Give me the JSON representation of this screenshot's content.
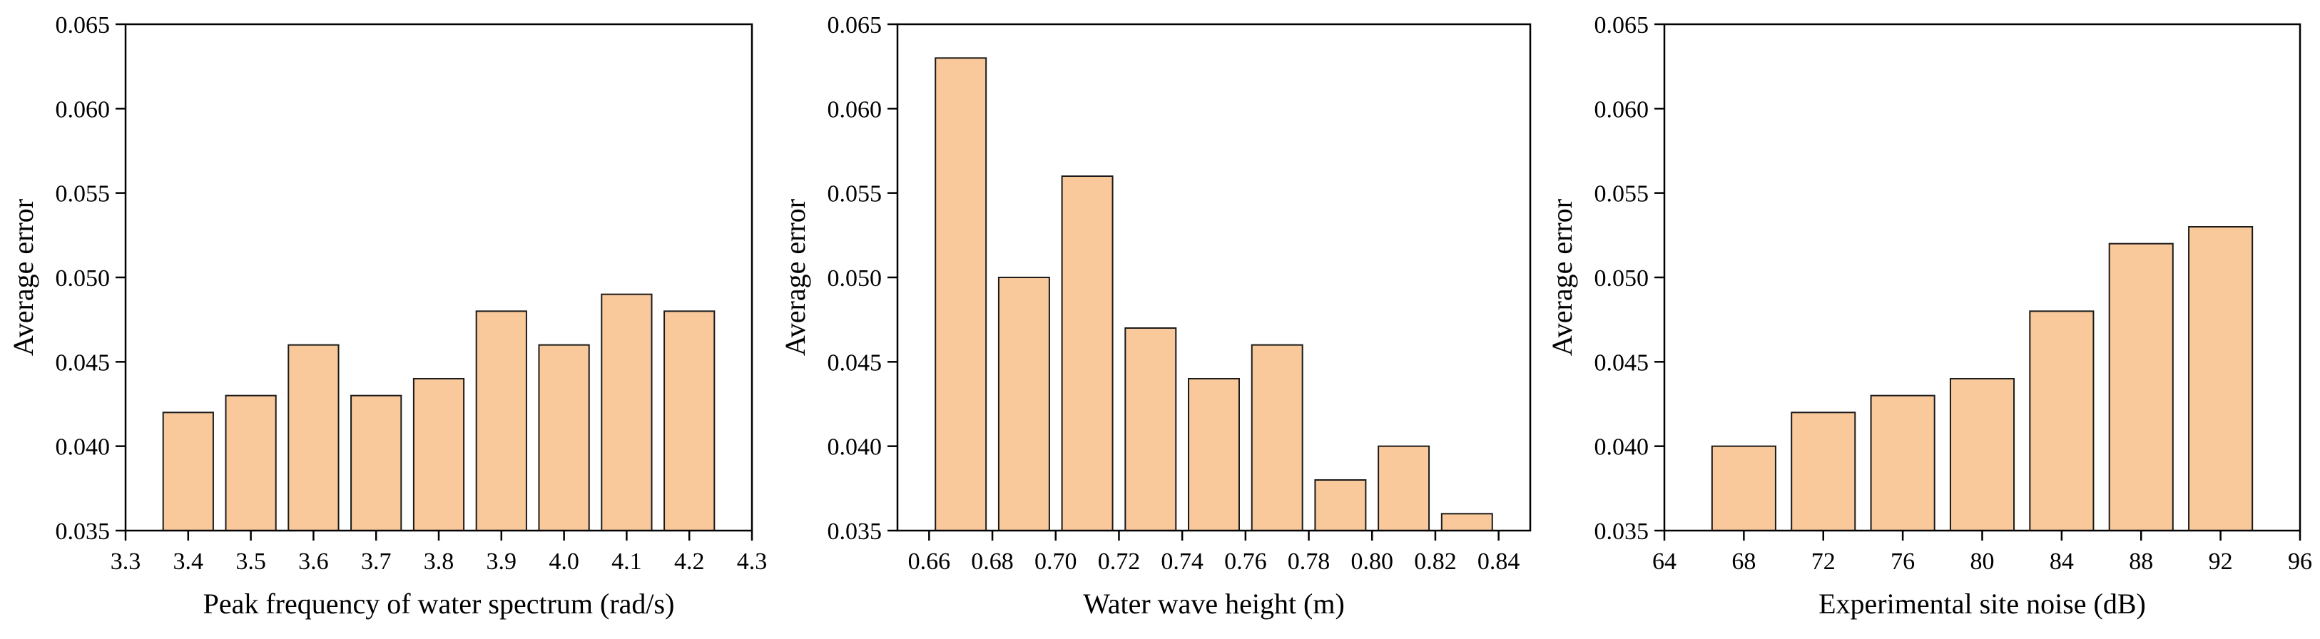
{
  "colors": {
    "bar_fill": "#f9c89b",
    "bar_stroke": "#1a1a1a",
    "axis": "#000000"
  },
  "chart_data": [
    {
      "type": "bar",
      "title": "",
      "xlabel": "Peak frequency of water spectrum (rad/s)",
      "ylabel": "Average error",
      "xlim": [
        3.3,
        4.3
      ],
      "ylim": [
        0.035,
        0.065
      ],
      "xticks": [
        "3.3",
        "3.4",
        "3.5",
        "3.6",
        "3.7",
        "3.8",
        "3.9",
        "4.0",
        "4.1",
        "4.2",
        "4.3"
      ],
      "yticks": [
        "0.035",
        "0.040",
        "0.045",
        "0.050",
        "0.055",
        "0.060",
        "0.065"
      ],
      "x": [
        3.4,
        3.5,
        3.6,
        3.7,
        3.8,
        3.9,
        4.0,
        4.1,
        4.2
      ],
      "bar_width": 0.08,
      "values": [
        0.042,
        0.043,
        0.046,
        0.043,
        0.044,
        0.048,
        0.046,
        0.049,
        0.048
      ]
    },
    {
      "type": "bar",
      "title": "",
      "xlabel": "Water wave height (m)",
      "ylabel": "Average error",
      "xlim": [
        0.65,
        0.85
      ],
      "ylim": [
        0.035,
        0.065
      ],
      "xticks": [
        "0.66",
        "0.68",
        "0.70",
        "0.72",
        "0.74",
        "0.76",
        "0.78",
        "0.80",
        "0.82",
        "0.84"
      ],
      "yticks": [
        "0.035",
        "0.040",
        "0.045",
        "0.050",
        "0.055",
        "0.060",
        "0.065"
      ],
      "x": [
        0.67,
        0.69,
        0.71,
        0.73,
        0.75,
        0.77,
        0.79,
        0.81,
        0.83
      ],
      "bar_width": 0.016,
      "values": [
        0.063,
        0.05,
        0.056,
        0.047,
        0.044,
        0.046,
        0.038,
        0.04,
        0.036
      ]
    },
    {
      "type": "bar",
      "title": "",
      "xlabel": "Experimental site noise (dB)",
      "ylabel": "Average error",
      "xlim": [
        64,
        96
      ],
      "ylim": [
        0.035,
        0.065
      ],
      "xticks": [
        "64",
        "68",
        "72",
        "76",
        "80",
        "84",
        "88",
        "92",
        "96"
      ],
      "yticks": [
        "0.035",
        "0.040",
        "0.045",
        "0.050",
        "0.055",
        "0.060",
        "0.065"
      ],
      "x": [
        68,
        72,
        76,
        80,
        84,
        88,
        92
      ],
      "bar_width": 3.2,
      "values": [
        0.04,
        0.042,
        0.043,
        0.044,
        0.048,
        0.052,
        0.053
      ]
    }
  ]
}
